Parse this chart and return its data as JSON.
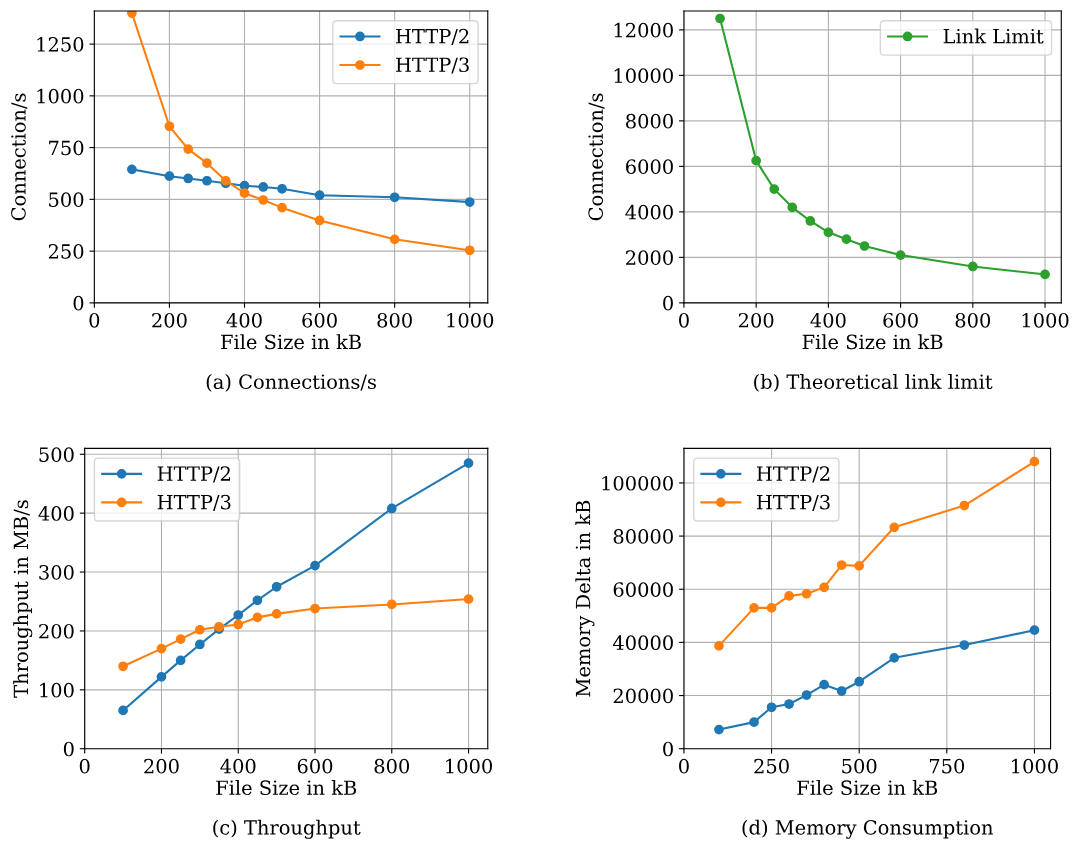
{
  "chart_data": [
    {
      "type": "line",
      "xlabel": "File Size in kB",
      "ylabel": "Connection/s",
      "annotations": [
        "(a) Connections/s"
      ],
      "x": [
        100,
        200,
        250,
        300,
        350,
        400,
        450,
        500,
        600,
        800,
        1000
      ],
      "series": [
        {
          "name": "HTTP/2",
          "color": "#1f77b4",
          "values": [
            645,
            612,
            601,
            590,
            578,
            566,
            560,
            551,
            520,
            510,
            487
          ]
        },
        {
          "name": "HTTP/3",
          "color": "#ff7f0e",
          "values": [
            1400,
            853,
            743,
            675,
            590,
            530,
            497,
            460,
            398,
            307,
            254
          ]
        }
      ],
      "xlim": [
        0,
        1048
      ],
      "ylim": [
        0,
        1410
      ],
      "xticks": [
        0,
        200,
        400,
        600,
        800,
        1000
      ],
      "yticks": [
        0,
        250,
        500,
        750,
        1000,
        1250
      ],
      "grid": true,
      "legend": "top right",
      "marker": "circle",
      "line_style": "solid"
    },
    {
      "type": "line",
      "xlabel": "File Size in kB",
      "ylabel": "Connection/s",
      "annotations": [
        "(b) Theoretical link limit"
      ],
      "x": [
        100,
        200,
        250,
        300,
        350,
        400,
        450,
        500,
        600,
        800,
        1000
      ],
      "series": [
        {
          "name": "Link Limit",
          "color": "#2ca02c",
          "values": [
            12500,
            6250,
            5000,
            4200,
            3600,
            3100,
            2800,
            2500,
            2100,
            1600,
            1250
          ]
        }
      ],
      "xlim": [
        0,
        1045
      ],
      "ylim": [
        0,
        12830
      ],
      "xticks": [
        0,
        200,
        400,
        600,
        800,
        1000
      ],
      "yticks": [
        0,
        2000,
        4000,
        6000,
        8000,
        10000,
        12000
      ],
      "grid": true,
      "legend": "top right",
      "marker": "circle",
      "line_style": "solid"
    },
    {
      "type": "line",
      "xlabel": "File Size in kB",
      "ylabel": "Throughput in MB/s",
      "annotations": [
        "(c) Throughput"
      ],
      "x": [
        100,
        200,
        250,
        300,
        350,
        400,
        450,
        500,
        600,
        800,
        1000
      ],
      "series": [
        {
          "name": "HTTP/2",
          "color": "#1f77b4",
          "values": [
            65,
            122,
            150,
            177,
            203,
            227,
            252,
            275,
            311,
            408,
            485
          ]
        },
        {
          "name": "HTTP/3",
          "color": "#ff7f0e",
          "values": [
            140,
            170,
            186,
            202,
            207,
            211,
            223,
            229,
            238,
            245,
            254
          ]
        }
      ],
      "xlim": [
        0,
        1050
      ],
      "ylim": [
        0,
        510
      ],
      "xticks": [
        0,
        200,
        400,
        600,
        800,
        1000
      ],
      "yticks": [
        0,
        100,
        200,
        300,
        400,
        500
      ],
      "grid": true,
      "legend": "top left",
      "marker": "circle",
      "line_style": "solid"
    },
    {
      "type": "line",
      "xlabel": "File Size in kB",
      "ylabel": "Memory Delta in kB",
      "annotations": [
        "(d) Memory Consumption"
      ],
      "x": [
        100,
        200,
        250,
        300,
        350,
        400,
        450,
        500,
        600,
        800,
        1000
      ],
      "series": [
        {
          "name": "HTTP/2",
          "color": "#1f77b4",
          "values": [
            7200,
            10000,
            15600,
            16800,
            20200,
            24100,
            21700,
            25200,
            34200,
            39000,
            44600
          ]
        },
        {
          "name": "HTTP/3",
          "color": "#ff7f0e",
          "values": [
            38700,
            53000,
            53000,
            57500,
            58300,
            60700,
            69100,
            68800,
            83300,
            91500,
            108000
          ]
        }
      ],
      "xlim": [
        0,
        1046
      ],
      "ylim": [
        0,
        113000
      ],
      "xticks": [
        0,
        250,
        500,
        750,
        1000
      ],
      "yticks": [
        0,
        20000,
        40000,
        60000,
        80000,
        100000
      ],
      "grid": true,
      "legend": "top left",
      "marker": "circle",
      "line_style": "solid"
    }
  ]
}
